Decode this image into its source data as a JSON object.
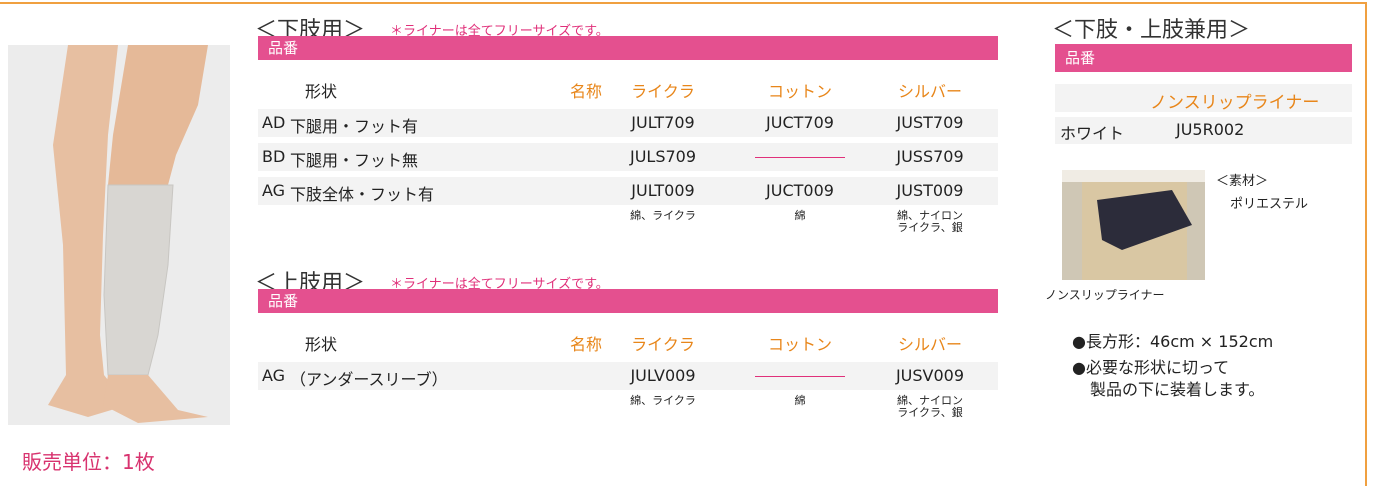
{
  "lower": {
    "heading": "＜下肢用＞",
    "note": "＊ライナーは全てフリーサイズです。",
    "label": "品番",
    "columns": [
      "形状",
      "名称",
      "ライクラ",
      "コットン",
      "シルバー"
    ],
    "rows": [
      [
        "AD",
        "下腿用・フット有",
        "JULT709",
        "JUCT709",
        "JUST709"
      ],
      [
        "BD",
        "下腿用・フット無",
        "JULS709",
        null,
        "JUSS709"
      ],
      [
        "AG",
        "下肢全体・フット有",
        "JULT009",
        "JUCT009",
        "JUST009"
      ]
    ],
    "materials": [
      [
        "綿、ライクラ"
      ],
      [
        "綿"
      ],
      [
        "綿、ナイロン",
        "ライクラ、銀"
      ]
    ]
  },
  "upper": {
    "heading": "＜上肢用＞",
    "note": "＊ライナーは全てフリーサイズです。",
    "label": "品番",
    "columns": [
      "形状",
      "名称",
      "ライクラ",
      "コットン",
      "シルバー"
    ],
    "rows": [
      [
        "AG",
        "（アンダースリーブ）",
        "JULV009",
        null,
        "JUSV009"
      ]
    ],
    "materials": [
      [
        "綿、ライクラ"
      ],
      [
        "綿"
      ],
      [
        "綿、ナイロン",
        "ライクラ、銀"
      ]
    ]
  },
  "combined": {
    "heading": "＜下肢・上肢兼用＞",
    "label": "品番",
    "column": "ノンスリップライナー",
    "row": [
      "ホワイト",
      "JU5R002"
    ],
    "material_label": "＜素材＞",
    "material": "ポリエステル",
    "caption": "ノンスリップライナー",
    "bullets": [
      "●長方形：46cm × 152cm",
      "●必要な形状に切って",
      "製品の下に装着します。"
    ]
  },
  "footer": "販売単位：1枚"
}
